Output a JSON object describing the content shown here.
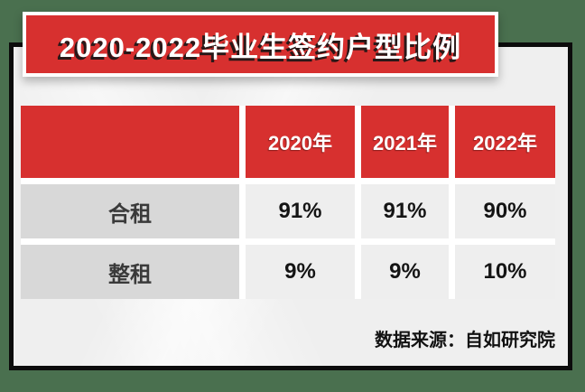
{
  "banner": {
    "title": "2020-2022毕业生签约户型比例"
  },
  "table": {
    "header": [
      "2020年",
      "2021年",
      "2022年"
    ],
    "rows": [
      {
        "label": "合租",
        "values": [
          "91%",
          "91%",
          "90%"
        ]
      },
      {
        "label": "整租",
        "values": [
          "9%",
          "9%",
          "10%"
        ]
      }
    ]
  },
  "source": "数据来源：自如研究院",
  "chart_data": {
    "type": "table",
    "title": "2020-2022毕业生签约户型比例",
    "categories": [
      "2020年",
      "2021年",
      "2022年"
    ],
    "series": [
      {
        "name": "合租",
        "values": [
          91,
          91,
          90
        ]
      },
      {
        "name": "整租",
        "values": [
          9,
          9,
          10
        ]
      }
    ],
    "unit": "percent",
    "source": "数据来源：自如研究院"
  },
  "colors": {
    "accent_red": "#d7302f",
    "background_green": "#4a704f",
    "card_border": "#0c0c0c",
    "banner_border": "#ffffff",
    "label_cell_bg": "#d8d8d8",
    "value_cell_bg": "#eeeeee",
    "header_text": "#ffffff",
    "value_text": "#141414"
  }
}
